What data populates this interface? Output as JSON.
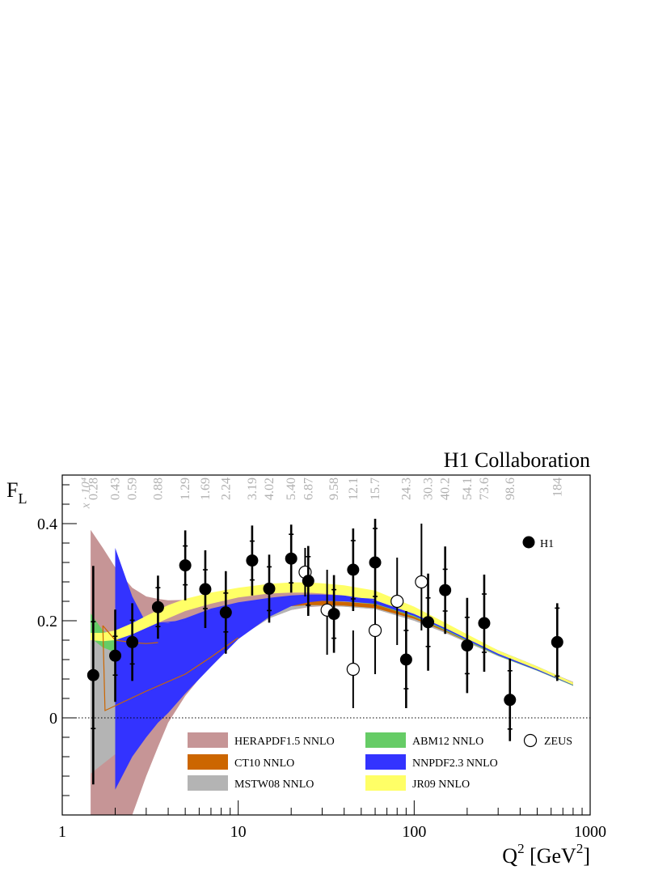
{
  "chart_data": {
    "type": "scatter",
    "title": "H1 Collaboration",
    "ylabel_main": "F",
    "ylabel_sub": "L",
    "xlabel_main": "Q",
    "xlabel_sup": "2",
    "xlabel_unit_open": " [GeV",
    "xlabel_unit_sup": "2",
    "xlabel_unit_close": "]",
    "xscale": "log",
    "xlim": [
      1,
      1000
    ],
    "ylim": [
      -0.2,
      0.5
    ],
    "x_ticks": [
      {
        "value": 1,
        "label": "1"
      },
      {
        "value": 10,
        "label": "10"
      },
      {
        "value": 100,
        "label": "100"
      },
      {
        "value": 1000,
        "label": "1000"
      }
    ],
    "y_ticks": [
      {
        "value": 0,
        "label": "0"
      },
      {
        "value": 0.2,
        "label": "0.2"
      },
      {
        "value": 0.4,
        "label": "0.4"
      }
    ],
    "zero_line": true,
    "x_scale_header": "x · 10⁴",
    "x_values_row": [
      {
        "q2": 1.5,
        "label": "0.28"
      },
      {
        "q2": 2.0,
        "label": "0.43"
      },
      {
        "q2": 2.5,
        "label": "0.59"
      },
      {
        "q2": 3.5,
        "label": "0.88"
      },
      {
        "q2": 5.0,
        "label": "1.29"
      },
      {
        "q2": 6.5,
        "label": "1.69"
      },
      {
        "q2": 8.5,
        "label": "2.24"
      },
      {
        "q2": 12,
        "label": "3.19"
      },
      {
        "q2": 15,
        "label": "4.02"
      },
      {
        "q2": 20,
        "label": "5.40"
      },
      {
        "q2": 25,
        "label": "6.87"
      },
      {
        "q2": 35,
        "label": "9.58"
      },
      {
        "q2": 45,
        "label": "12.1"
      },
      {
        "q2": 60,
        "label": "15.7"
      },
      {
        "q2": 90,
        "label": "24.3"
      },
      {
        "q2": 120,
        "label": "30.3"
      },
      {
        "q2": 150,
        "label": "40.2"
      },
      {
        "q2": 200,
        "label": "54.1"
      },
      {
        "q2": 250,
        "label": "73.6"
      },
      {
        "q2": 350,
        "label": "98.6"
      },
      {
        "q2": 650,
        "label": "184"
      }
    ],
    "series": [
      {
        "name": "H1",
        "marker": "filled",
        "points": [
          {
            "x": 1.5,
            "y": 0.088,
            "stat": 0.11,
            "tot": 0.225
          },
          {
            "x": 2.0,
            "y": 0.128,
            "stat": 0.04,
            "tot": 0.095
          },
          {
            "x": 2.5,
            "y": 0.156,
            "stat": 0.045,
            "tot": 0.08
          },
          {
            "x": 3.5,
            "y": 0.228,
            "stat": 0.04,
            "tot": 0.065
          },
          {
            "x": 5.0,
            "y": 0.314,
            "stat": 0.04,
            "tot": 0.072
          },
          {
            "x": 6.5,
            "y": 0.265,
            "stat": 0.04,
            "tot": 0.08
          },
          {
            "x": 8.5,
            "y": 0.217,
            "stat": 0.04,
            "tot": 0.085
          },
          {
            "x": 12,
            "y": 0.324,
            "stat": 0.04,
            "tot": 0.072
          },
          {
            "x": 15,
            "y": 0.266,
            "stat": 0.045,
            "tot": 0.07
          },
          {
            "x": 20,
            "y": 0.328,
            "stat": 0.05,
            "tot": 0.07
          },
          {
            "x": 25,
            "y": 0.282,
            "stat": 0.05,
            "tot": 0.072
          },
          {
            "x": 35,
            "y": 0.214,
            "stat": 0.05,
            "tot": 0.08
          },
          {
            "x": 45,
            "y": 0.305,
            "stat": 0.06,
            "tot": 0.085
          },
          {
            "x": 60,
            "y": 0.32,
            "stat": 0.07,
            "tot": 0.09
          },
          {
            "x": 90,
            "y": 0.12,
            "stat": 0.06,
            "tot": 0.1
          },
          {
            "x": 120,
            "y": 0.197,
            "stat": 0.05,
            "tot": 0.1
          },
          {
            "x": 150,
            "y": 0.263,
            "stat": 0.043,
            "tot": 0.09
          },
          {
            "x": 200,
            "y": 0.149,
            "stat": 0.058,
            "tot": 0.098
          },
          {
            "x": 250,
            "y": 0.195,
            "stat": 0.06,
            "tot": 0.1
          },
          {
            "x": 350,
            "y": 0.037,
            "stat": 0.06,
            "tot": 0.085
          },
          {
            "x": 650,
            "y": 0.156,
            "stat": 0.07,
            "tot": 0.08
          }
        ]
      },
      {
        "name": "ZEUS",
        "marker": "open",
        "points": [
          {
            "x": 24,
            "y": 0.3,
            "lo": 0.25,
            "hi": 0.35
          },
          {
            "x": 32,
            "y": 0.222,
            "lo": 0.13,
            "hi": 0.305
          },
          {
            "x": 45,
            "y": 0.1,
            "lo": 0.02,
            "hi": 0.18
          },
          {
            "x": 60,
            "y": 0.18,
            "lo": 0.09,
            "hi": 0.26
          },
          {
            "x": 80,
            "y": 0.24,
            "lo": 0.15,
            "hi": 0.33
          },
          {
            "x": 110,
            "y": 0.28,
            "lo": 0.18,
            "hi": 0.4
          }
        ]
      }
    ],
    "bands": [
      {
        "name": "HERAPDF1.5 NNLO",
        "color": "#c69596",
        "x": [
          1.45,
          1.7,
          2.0,
          2.5,
          3.0,
          3.5,
          4.0,
          5.0,
          7.0,
          10,
          15,
          20,
          25,
          30,
          40,
          60,
          100,
          150,
          200,
          300,
          500,
          800
        ],
        "lo": [
          -0.2,
          -0.2,
          -0.2,
          -0.2,
          -0.12,
          -0.06,
          -0.01,
          0.045,
          0.11,
          0.165,
          0.205,
          0.222,
          0.228,
          0.23,
          0.229,
          0.224,
          0.2,
          0.175,
          0.155,
          0.127,
          0.097,
          0.066
        ],
        "hi": [
          0.387,
          0.35,
          0.31,
          0.268,
          0.25,
          0.245,
          0.242,
          0.243,
          0.252,
          0.262,
          0.27,
          0.272,
          0.27,
          0.268,
          0.262,
          0.248,
          0.216,
          0.186,
          0.166,
          0.136,
          0.105,
          0.074
        ]
      },
      {
        "name": "MSTW08 NNLO",
        "color": "#b4b4b4",
        "x": [
          1.45,
          1.7,
          2.0,
          2.5,
          3.0,
          3.5,
          5.0,
          7.0,
          10,
          15,
          20,
          25,
          30,
          40,
          60,
          100,
          150,
          200,
          300,
          500,
          800
        ],
        "lo": [
          -0.115,
          -0.095,
          -0.075,
          -0.055,
          -0.035,
          -0.01,
          0.05,
          0.11,
          0.165,
          0.205,
          0.222,
          0.229,
          0.231,
          0.229,
          0.224,
          0.2,
          0.175,
          0.155,
          0.127,
          0.097,
          0.066
        ],
        "hi": [
          0.2,
          0.175,
          0.162,
          0.158,
          0.16,
          0.162,
          0.175,
          0.2,
          0.225,
          0.245,
          0.252,
          0.253,
          0.252,
          0.249,
          0.242,
          0.217,
          0.19,
          0.168,
          0.137,
          0.105,
          0.072
        ]
      },
      {
        "name": "CT10 NNLO",
        "color": "#cc6600",
        "x": [
          2.5,
          3.0,
          3.5,
          5.0,
          7.0,
          10,
          15,
          20,
          25,
          30,
          40,
          60,
          100,
          150,
          200,
          300,
          500,
          800
        ],
        "lo": [
          0.145,
          0.143,
          0.145,
          0.158,
          0.182,
          0.205,
          0.222,
          0.23,
          0.232,
          0.232,
          0.231,
          0.226,
          0.204,
          0.178,
          0.157,
          0.129,
          0.099,
          0.068
        ],
        "hi": [
          0.155,
          0.153,
          0.156,
          0.172,
          0.198,
          0.22,
          0.235,
          0.24,
          0.241,
          0.241,
          0.239,
          0.234,
          0.211,
          0.185,
          0.164,
          0.134,
          0.103,
          0.071
        ]
      },
      {
        "name": "ABM12 NNLO",
        "color": "#66cc66",
        "x": [
          1.45,
          1.7,
          2.0,
          2.5,
          3.0,
          4.0,
          5.0,
          7.0,
          10,
          15,
          20,
          25,
          30,
          40,
          60,
          100,
          150,
          200,
          300,
          500,
          800
        ],
        "lo": [
          0.165,
          0.145,
          0.135,
          0.132,
          0.135,
          0.145,
          0.16,
          0.185,
          0.208,
          0.228,
          0.237,
          0.24,
          0.241,
          0.24,
          0.234,
          0.208,
          0.18,
          0.158,
          0.128,
          0.097,
          0.066
        ],
        "hi": [
          0.215,
          0.18,
          0.162,
          0.152,
          0.152,
          0.158,
          0.172,
          0.197,
          0.22,
          0.238,
          0.246,
          0.249,
          0.249,
          0.247,
          0.241,
          0.216,
          0.188,
          0.166,
          0.135,
          0.103,
          0.071
        ]
      },
      {
        "name": "NNPDF2.3 NNLO",
        "color": "#3333ff",
        "x": [
          2.0,
          2.5,
          3.0,
          3.5,
          4.0,
          5.0,
          7.0,
          10,
          15,
          20,
          25,
          30,
          40,
          60,
          100,
          150,
          200,
          300,
          500,
          800
        ],
        "lo": [
          -0.148,
          -0.08,
          -0.04,
          -0.01,
          0.01,
          0.05,
          0.105,
          0.162,
          0.208,
          0.23,
          0.238,
          0.241,
          0.24,
          0.235,
          0.21,
          0.182,
          0.16,
          0.129,
          0.098,
          0.067
        ],
        "hi": [
          0.35,
          0.25,
          0.195,
          0.195,
          0.195,
          0.205,
          0.225,
          0.238,
          0.247,
          0.252,
          0.254,
          0.254,
          0.252,
          0.245,
          0.22,
          0.192,
          0.17,
          0.139,
          0.106,
          0.073
        ]
      },
      {
        "name": "JR09 NNLO",
        "color": "#ffff66",
        "x": [
          1.45,
          1.7,
          2.0,
          2.5,
          3.0,
          4.0,
          5.0,
          7.0,
          10,
          15,
          20,
          25,
          30,
          40,
          60,
          100,
          150,
          200,
          300,
          500,
          800
        ],
        "lo": [
          0.16,
          0.158,
          0.16,
          0.172,
          0.185,
          0.205,
          0.22,
          0.235,
          0.248,
          0.256,
          0.258,
          0.258,
          0.256,
          0.252,
          0.242,
          0.214,
          0.185,
          0.163,
          0.132,
          0.1,
          0.068
        ],
        "hi": [
          0.175,
          0.175,
          0.18,
          0.195,
          0.21,
          0.232,
          0.245,
          0.258,
          0.268,
          0.276,
          0.279,
          0.279,
          0.277,
          0.273,
          0.262,
          0.229,
          0.196,
          0.172,
          0.139,
          0.106,
          0.073
        ]
      }
    ],
    "outline_lines": [
      {
        "color": "#cc6600",
        "x": [
          1.7,
          1.75,
          3.0,
          5.0,
          7.0,
          10
        ],
        "y": [
          0.19,
          0.015,
          0.055,
          0.09,
          0.125,
          0.165
        ]
      },
      {
        "color": "#cc6600",
        "x": [
          1.7,
          2.0,
          2.5,
          3.0,
          3.5
        ],
        "y": [
          0.19,
          0.16,
          0.155,
          0.153,
          0.155
        ]
      },
      {
        "color": "#3333ff",
        "x": [
          3.5,
          5.0,
          7.0,
          10,
          15,
          20,
          30,
          60
        ],
        "y": [
          0.195,
          0.2,
          0.215,
          0.232,
          0.244,
          0.25,
          0.251,
          0.244
        ]
      }
    ],
    "legend": {
      "items": [
        {
          "label": "HERAPDF1.5 NNLO",
          "color": "#c69596",
          "kind": "band"
        },
        {
          "label": "CT10 NNLO",
          "color": "#cc6600",
          "kind": "band"
        },
        {
          "label": "MSTW08 NNLO",
          "color": "#b4b4b4",
          "kind": "band"
        },
        {
          "label": "ABM12 NNLO",
          "color": "#66cc66",
          "kind": "band"
        },
        {
          "label": "NNPDF2.3 NNLO",
          "color": "#3333ff",
          "kind": "band"
        },
        {
          "label": "JR09 NNLO",
          "color": "#ffff66",
          "kind": "band"
        },
        {
          "label": "ZEUS",
          "kind": "open-marker"
        }
      ],
      "h1_label": "H1",
      "placement": "bottom / top-right"
    },
    "colors": {
      "x_label_text": "#b0b0b0",
      "axis": "#000000",
      "zero_line": "#000000"
    }
  }
}
